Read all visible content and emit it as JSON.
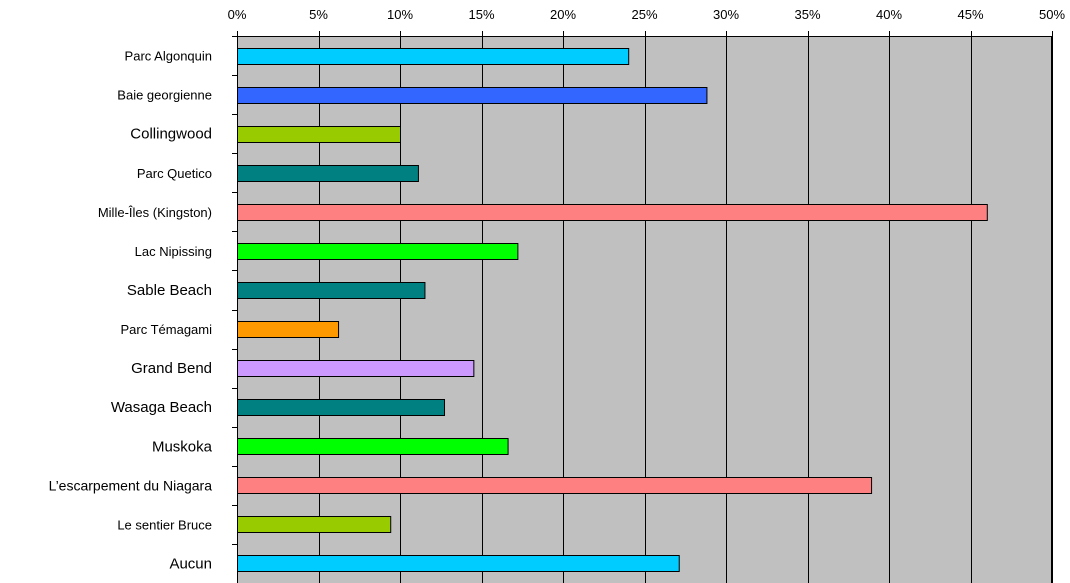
{
  "chart_data": {
    "type": "bar",
    "orientation": "horizontal",
    "title": "",
    "xlabel": "",
    "ylabel": "",
    "xlim": [
      0,
      50
    ],
    "x_ticks": [
      0,
      5,
      10,
      15,
      20,
      25,
      30,
      35,
      40,
      45,
      50
    ],
    "x_tick_labels": [
      "0%",
      "5%",
      "10%",
      "15%",
      "20%",
      "25%",
      "30%",
      "35%",
      "40%",
      "45%",
      "50%"
    ],
    "x_axis_position": "top",
    "grid": "vertical",
    "plot_background": "#c0c0c0",
    "legend": "none",
    "categories": [
      "Parc Algonquin",
      "Baie georgienne",
      "Collingwood",
      "Parc Quetico",
      "Mille-Îles (Kingston)",
      "Lac Nipissing",
      "Sable Beach",
      "Parc Témagami",
      "Grand Bend",
      "Wasaga Beach",
      "Muskoka",
      "L’escarpement du Niagara",
      "Le sentier Bruce",
      "Aucun"
    ],
    "values": [
      24,
      28.8,
      10,
      11.1,
      46,
      17.2,
      11.5,
      6.2,
      14.5,
      12.7,
      16.6,
      38.9,
      9.4,
      27.1
    ],
    "bar_colors": [
      "#00ccff",
      "#3366ff",
      "#99cc00",
      "#008080",
      "#ff8080",
      "#00ff00",
      "#008080",
      "#ff9900",
      "#cc99ff",
      "#008080",
      "#00ff00",
      "#ff8080",
      "#99cc00",
      "#00ccff"
    ]
  }
}
